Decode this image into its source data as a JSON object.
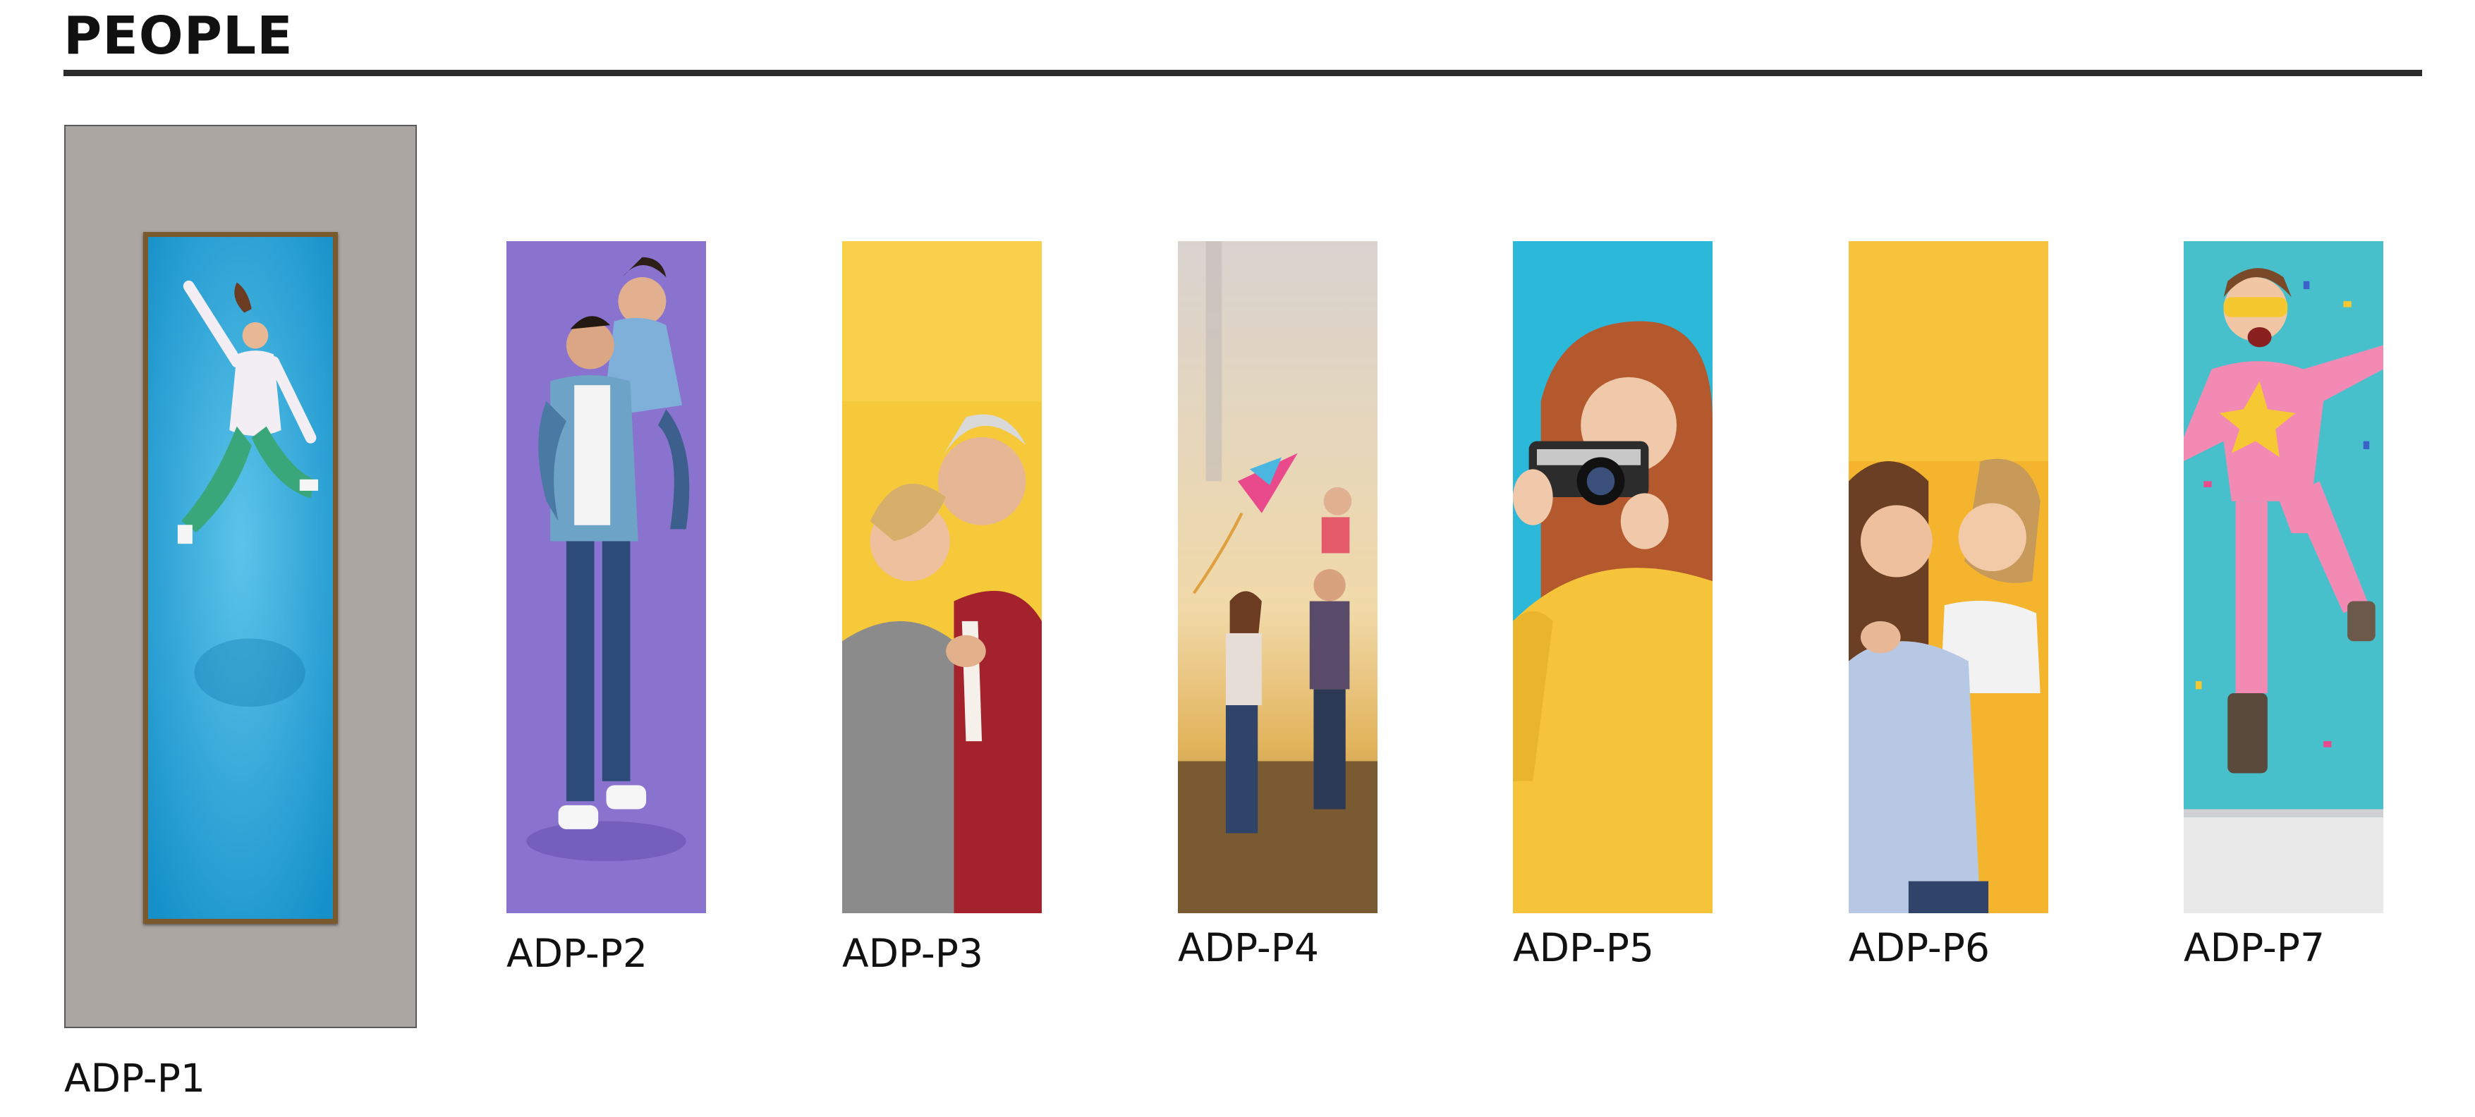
{
  "header": {
    "title": "PEOPLE"
  },
  "products": [
    {
      "code": "ADP-P1",
      "image": "woman-jumping-on-blue-background"
    },
    {
      "code": "ADP-P2",
      "image": "couple-piggyback-on-purple-background"
    },
    {
      "code": "ADP-P3",
      "image": "senior-couple-embracing-on-yellow-background"
    },
    {
      "code": "ADP-P4",
      "image": "family-with-kite-in-field-at-sunset"
    },
    {
      "code": "ADP-P5",
      "image": "woman-with-camera-on-blue-background"
    },
    {
      "code": "ADP-P6",
      "image": "mother-and-daughter-hugging-on-yellow-background"
    },
    {
      "code": "ADP-P7",
      "image": "girl-superhero-costume-with-confetti"
    }
  ],
  "colors": {
    "mount": "#aca6a3",
    "frame": "#7a5a2d",
    "rule": "#2b2b2b"
  }
}
